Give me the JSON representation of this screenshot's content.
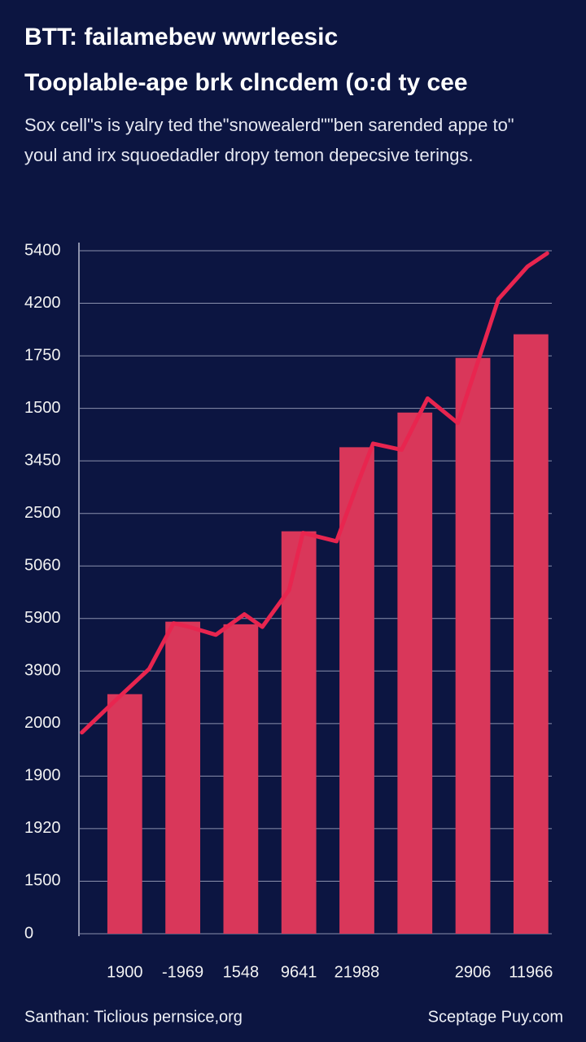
{
  "chart_data": {
    "type": "bar",
    "title": [
      "BTT: failamebew wwrleesic",
      "Tooplable-ape brk clncdem (o:d ty cee"
    ],
    "subtitle": [
      "Sox cell\"s is yalry ted the\"snowealerd\"\"ben sarended appe to\"",
      "youl and irx squoedadler dropy temon depecsive terings."
    ],
    "footer_left": "Santhan: Ticlious pernsice,org",
    "footer_right": "Sceptage Puy.com",
    "categories": [
      "1900",
      "-1969",
      "1548",
      "9641",
      "21988",
      null,
      "2906",
      "11966"
    ],
    "values": [
      4.56,
      5.94,
      5.89,
      7.66,
      9.26,
      9.92,
      10.96,
      11.41
    ],
    "color": "#d9375a",
    "line": {
      "color": "#e8254f",
      "x": [
        -0.74,
        -0.18,
        0.42,
        0.84,
        1.11,
        1.57,
        2.06,
        2.37,
        2.83,
        3.07,
        3.65,
        4.0,
        4.28,
        4.77,
        5.22,
        5.74,
        6.44,
        6.94,
        7.28
      ],
      "values": [
        3.83,
        4.42,
        5.04,
        5.91,
        5.84,
        5.69,
        6.08,
        5.84,
        6.54,
        7.63,
        7.47,
        8.53,
        9.33,
        9.21,
        10.19,
        9.72,
        12.08,
        12.7,
        12.95
      ]
    },
    "xlim": [
      -0.79,
      7.36
    ],
    "ylim": [
      0,
      13
    ],
    "yticks": [
      {
        "value": 0,
        "label": "0"
      },
      {
        "value": 1,
        "label": "1500"
      },
      {
        "value": 2,
        "label": "1920"
      },
      {
        "value": 3,
        "label": "1900"
      },
      {
        "value": 4,
        "label": "2000"
      },
      {
        "value": 5,
        "label": "3900"
      },
      {
        "value": 6,
        "label": "5900"
      },
      {
        "value": 7,
        "label": "5060"
      },
      {
        "value": 8,
        "label": "2500"
      },
      {
        "value": 9,
        "label": "3450"
      },
      {
        "value": 10,
        "label": "1500"
      },
      {
        "value": 11,
        "label": "1750"
      },
      {
        "value": 12,
        "label": "4200"
      },
      {
        "value": 13,
        "label": "5400"
      }
    ],
    "grid": true
  }
}
